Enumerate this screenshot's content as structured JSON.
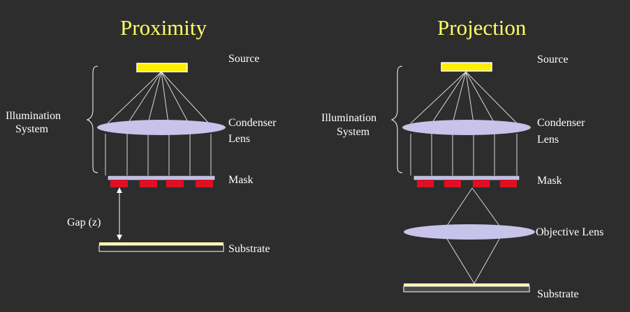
{
  "colors": {
    "background": "#2d2d2d",
    "title": "#ffff66",
    "text": "#ffffff",
    "source_fill": "#ffee00",
    "lens_fill": "#c7c3ea",
    "mask_plate": "#bcbce6",
    "mask_block": "#dd1122",
    "substrate_fill": "#ffffaa",
    "ray": "#d9d9d9"
  },
  "proximity": {
    "title": "Proximity",
    "source_label": "Source",
    "illumination_label": [
      "Illumination",
      "System"
    ],
    "condenser_label": [
      "Condenser",
      "Lens"
    ],
    "mask_label": "Mask",
    "gap_label": "Gap (z)",
    "substrate_label": "Substrate"
  },
  "projection": {
    "title": "Projection",
    "source_label": "Source",
    "illumination_label": [
      "Illumination",
      "System"
    ],
    "condenser_label": [
      "Condenser",
      "Lens"
    ],
    "mask_label": "Mask",
    "objective_label": "Objective Lens",
    "substrate_label": "Substrate"
  }
}
